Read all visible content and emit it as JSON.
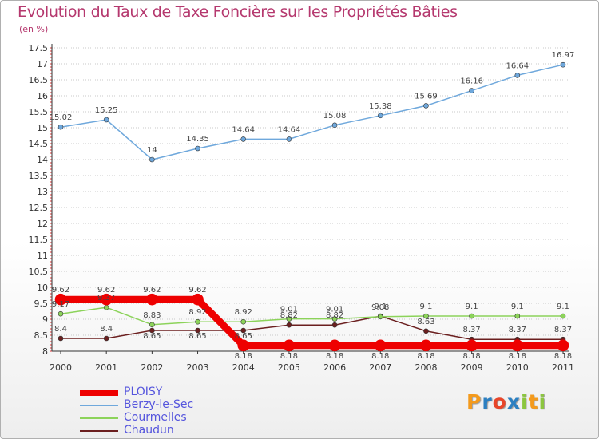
{
  "title": "Evolution du Taux de Taxe Foncière sur les Propriétés Bâties",
  "unit_label": "(en %)",
  "logo": [
    "P",
    "r",
    "o",
    "x",
    "i",
    "t",
    "i"
  ],
  "chart_data": {
    "type": "line",
    "categories": [
      "2000",
      "2001",
      "2002",
      "2003",
      "2004",
      "2005",
      "2006",
      "2007",
      "2008",
      "2009",
      "2010",
      "2011"
    ],
    "ylim": [
      8,
      17.5
    ],
    "yticks": [
      "8",
      "8.5",
      "9",
      "9.5",
      "10",
      "10.5",
      "11",
      "11.5",
      "12",
      "12.5",
      "13",
      "13.5",
      "14",
      "14.5",
      "15",
      "15.5",
      "16",
      "16.5",
      "17",
      "17.5"
    ],
    "grid": "horizontal dotted",
    "legend_position": "bottom-left",
    "series": [
      {
        "name": "PLOISY",
        "color": "#ee0000",
        "values": [
          9.62,
          9.62,
          9.62,
          9.62,
          8.18,
          8.18,
          8.18,
          8.18,
          8.18,
          8.18,
          8.18,
          8.18
        ],
        "labels": [
          "9.62",
          "9.62",
          "9.62",
          "9.62",
          "8.18",
          "8.18",
          "8.18",
          "8.18",
          "8.18",
          "8.18",
          "8.18",
          "8.18"
        ]
      },
      {
        "name": "Berzy-le-Sec",
        "color": "#6fa8dc",
        "values": [
          15.02,
          15.25,
          14,
          14.35,
          14.64,
          14.64,
          15.08,
          15.38,
          15.69,
          16.16,
          16.64,
          16.97
        ],
        "labels": [
          "15.02",
          "15.25",
          "14",
          "14.35",
          "14.64",
          "14.64",
          "15.08",
          "15.38",
          "15.69",
          "16.16",
          "16.64",
          "16.97"
        ]
      },
      {
        "name": "Courmelles",
        "color": "#8cd35a",
        "values": [
          9.17,
          9.37,
          8.83,
          8.92,
          8.92,
          9.01,
          9.01,
          9.08,
          9.1,
          9.1,
          9.1,
          9.1
        ],
        "labels": [
          "9.17",
          "9.37",
          "8.83",
          "8.92",
          "8.92",
          "9.01",
          "9.01",
          "9.08",
          "9.1",
          "9.1",
          "9.1",
          "9.1"
        ]
      },
      {
        "name": "Chaudun",
        "color": "#6b1f1f",
        "values": [
          8.4,
          8.4,
          8.65,
          8.65,
          8.65,
          8.82,
          8.82,
          9.1,
          8.63,
          8.37,
          8.37,
          8.37
        ],
        "labels": [
          "8.4",
          "8.4",
          "8.65",
          "8.65",
          "8.65",
          "8.82",
          "8.82",
          "9.1",
          "8.63",
          "8.37",
          "8.37",
          "8.37"
        ]
      }
    ]
  }
}
